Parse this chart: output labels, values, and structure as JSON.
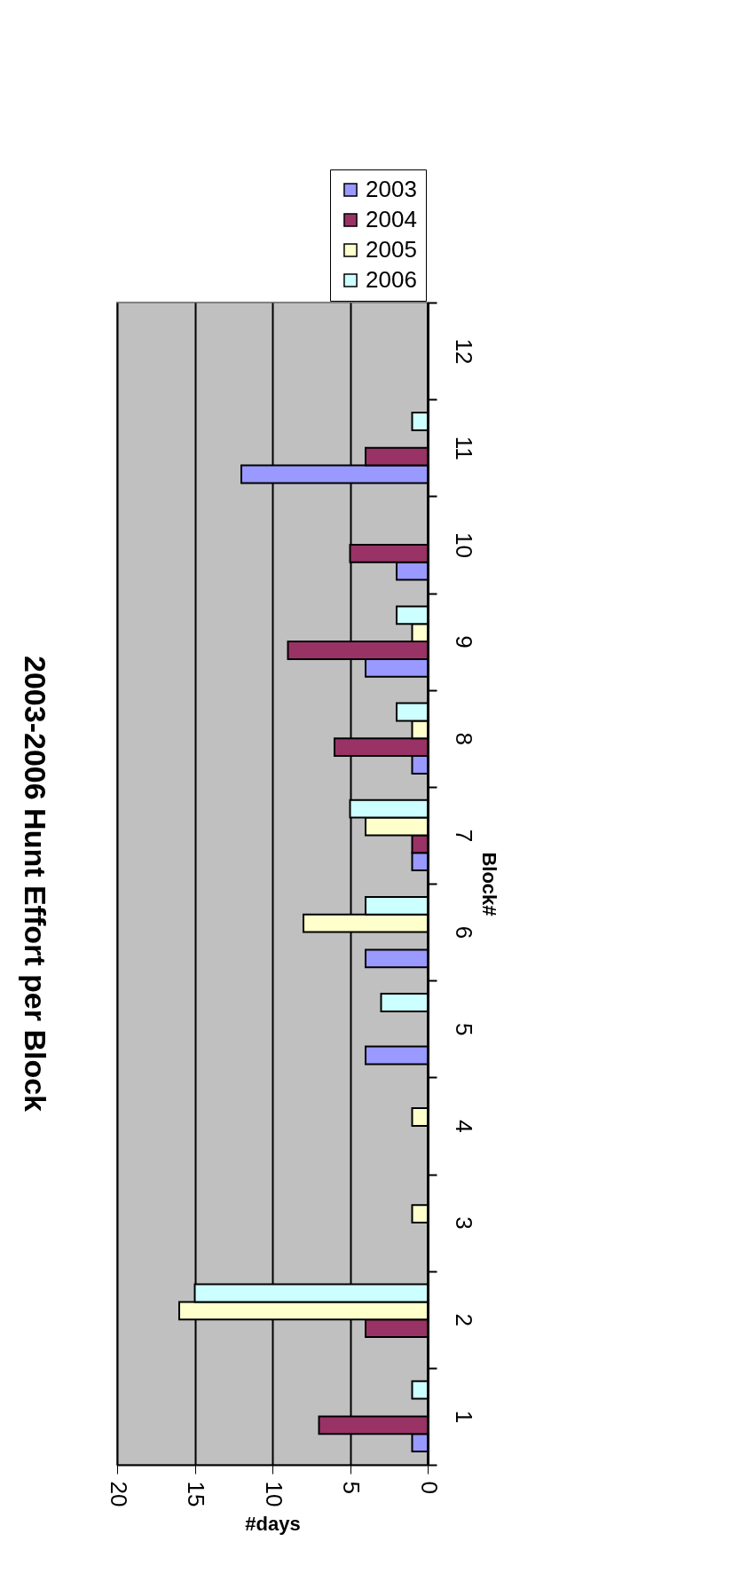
{
  "chart_data": {
    "type": "bar",
    "orientation": "horizontal",
    "title": "2003-2006 Hunt Effort per Block",
    "xlabel": "#days",
    "ylabel": "Block#",
    "categories": [
      "12",
      "11",
      "10",
      "9",
      "8",
      "7",
      "6",
      "5",
      "4",
      "3",
      "2",
      "1"
    ],
    "series": [
      {
        "name": "2003",
        "color": "#9999ff",
        "values": [
          null,
          12,
          2,
          4,
          1,
          1,
          4,
          4,
          null,
          null,
          null,
          1
        ]
      },
      {
        "name": "2004",
        "color": "#993366",
        "values": [
          null,
          4,
          5,
          9,
          6,
          1,
          null,
          null,
          null,
          null,
          4,
          7
        ]
      },
      {
        "name": "2005",
        "color": "#ffffcc",
        "values": [
          null,
          null,
          null,
          1,
          1,
          4,
          8,
          null,
          1,
          1,
          16,
          null
        ]
      },
      {
        "name": "2006",
        "color": "#ccffff",
        "values": [
          null,
          1,
          null,
          2,
          2,
          5,
          4,
          3,
          null,
          null,
          15,
          1
        ]
      }
    ],
    "xlim": [
      20,
      0
    ],
    "xticks": [
      20,
      15,
      10,
      5,
      0
    ],
    "grid": "x",
    "legend": "top right"
  }
}
